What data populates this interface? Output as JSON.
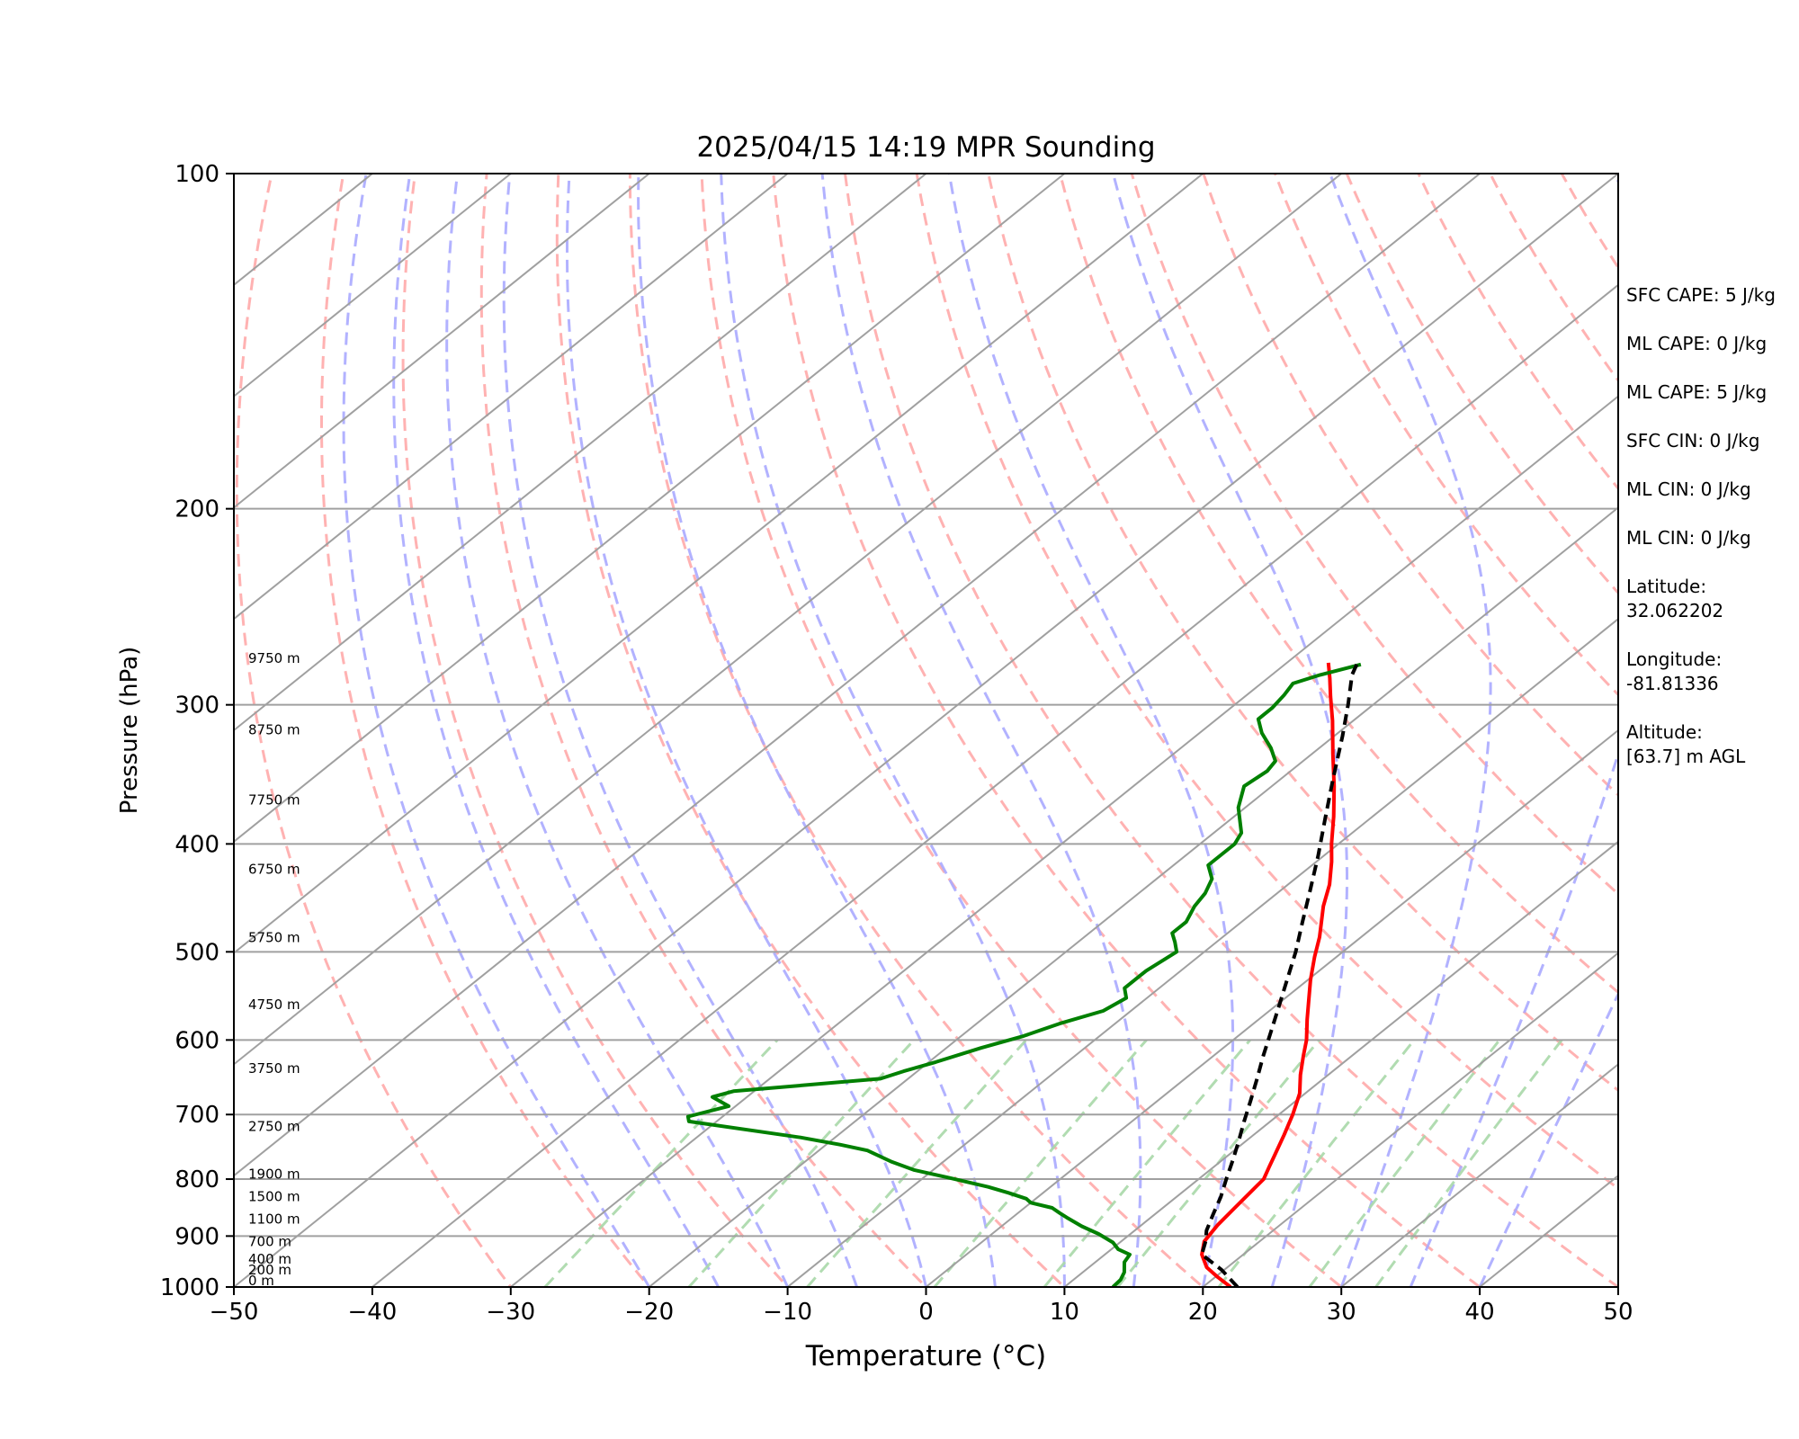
{
  "chart_data": {
    "type": "line",
    "title": "2025/04/15 14:19 MPR Sounding",
    "xlabel": "Temperature (°C)",
    "ylabel": "Pressure (hPa)",
    "xlim": [
      -50,
      50
    ],
    "ylim": [
      1000,
      100
    ],
    "y_scale": "log",
    "x_ticks": [
      "−50",
      "−40",
      "−30",
      "−20",
      "−10",
      "0",
      "10",
      "20",
      "30",
      "40",
      "50"
    ],
    "x_tick_values": [
      -50,
      -40,
      -30,
      -20,
      -10,
      0,
      10,
      20,
      30,
      40,
      50
    ],
    "y_ticks": [
      "1000",
      "900",
      "800",
      "700",
      "600",
      "500",
      "400",
      "300",
      "200",
      "100"
    ],
    "y_tick_values": [
      1000,
      900,
      800,
      700,
      600,
      500,
      400,
      300,
      200,
      100
    ],
    "grid": true,
    "colors": {
      "temperature": "#ff0000",
      "dewpoint": "#008000",
      "parcel": "#000000",
      "isotherms": "#a0a0a0",
      "dry_adiabats": "#ffaaaa",
      "moist_adiabats": "#aaaaff",
      "mixing_ratio": "#a8d8a8"
    },
    "series": [
      {
        "key": "temperature",
        "points": [
          [
            22.0,
            1000
          ],
          [
            20.2,
            980
          ],
          [
            18.5,
            960
          ],
          [
            17.0,
            935
          ],
          [
            16.0,
            910
          ],
          [
            15.5,
            880
          ],
          [
            15.2,
            850
          ],
          [
            14.9,
            820
          ],
          [
            14.7,
            800
          ],
          [
            14.0,
            780
          ],
          [
            13.3,
            760
          ],
          [
            12.2,
            730
          ],
          [
            11.0,
            700
          ],
          [
            9.6,
            670
          ],
          [
            8.0,
            645
          ],
          [
            6.5,
            620
          ],
          [
            5.3,
            600
          ],
          [
            3.5,
            575
          ],
          [
            1.7,
            550
          ],
          [
            0.2,
            530
          ],
          [
            -1.6,
            505
          ],
          [
            -3.0,
            485
          ],
          [
            -5.5,
            455
          ],
          [
            -7.0,
            435
          ],
          [
            -8.9,
            415
          ],
          [
            -10.5,
            400
          ],
          [
            -12.8,
            378
          ],
          [
            -15.5,
            355
          ],
          [
            -18.5,
            332
          ],
          [
            -21.5,
            310
          ],
          [
            -23.8,
            295
          ],
          [
            -25.5,
            284
          ],
          [
            -27.0,
            275
          ]
        ]
      },
      {
        "key": "dewpoint",
        "points": [
          [
            13.5,
            1000
          ],
          [
            13.4,
            985
          ],
          [
            13.0,
            970
          ],
          [
            12.1,
            950
          ],
          [
            11.8,
            935
          ],
          [
            10.5,
            925
          ],
          [
            9.5,
            912
          ],
          [
            7.7,
            896
          ],
          [
            5.8,
            882
          ],
          [
            3.9,
            866
          ],
          [
            3.0,
            858
          ],
          [
            2.0,
            849
          ],
          [
            0.0,
            840
          ],
          [
            -0.7,
            833
          ],
          [
            -2.5,
            823
          ],
          [
            -4.5,
            813
          ],
          [
            -8.1,
            798
          ],
          [
            -11.4,
            785
          ],
          [
            -13.7,
            772
          ],
          [
            -16.5,
            754
          ],
          [
            -19.0,
            745
          ],
          [
            -22.5,
            734
          ],
          [
            -32.0,
            710
          ],
          [
            -32.5,
            703
          ],
          [
            -30.5,
            688
          ],
          [
            -32.5,
            675
          ],
          [
            -31.5,
            667
          ],
          [
            -22.0,
            650
          ],
          [
            -21.0,
            640
          ],
          [
            -19.5,
            628
          ],
          [
            -17.5,
            610
          ],
          [
            -15.5,
            595
          ],
          [
            -14.0,
            580
          ],
          [
            -12.0,
            565
          ],
          [
            -11.5,
            550
          ],
          [
            -12.5,
            539
          ],
          [
            -12.5,
            520
          ],
          [
            -12.0,
            500
          ],
          [
            -13.0,
            490
          ],
          [
            -14.0,
            481
          ],
          [
            -14.0,
            470
          ],
          [
            -14.8,
            455
          ],
          [
            -15.2,
            443
          ],
          [
            -16.0,
            430
          ],
          [
            -17.5,
            418
          ],
          [
            -17.5,
            408
          ],
          [
            -17.5,
            400
          ],
          [
            -18.0,
            391
          ],
          [
            -20.5,
            371
          ],
          [
            -22.0,
            355
          ],
          [
            -21.7,
            344
          ],
          [
            -22.0,
            337
          ],
          [
            -23.5,
            328
          ],
          [
            -25.5,
            318
          ],
          [
            -27.0,
            309
          ],
          [
            -27.0,
            302
          ],
          [
            -27.3,
            294
          ],
          [
            -27.7,
            287
          ],
          [
            -26.5,
            282
          ],
          [
            -24.5,
            276
          ]
        ]
      },
      {
        "key": "parcel",
        "dashed": true,
        "points": [
          [
            22.5,
            1000
          ],
          [
            19.8,
            965
          ],
          [
            17.0,
            935
          ],
          [
            16.1,
            910
          ],
          [
            15.2,
            890
          ],
          [
            14.2,
            860
          ],
          [
            13.2,
            830
          ],
          [
            12.0,
            800
          ],
          [
            10.8,
            770
          ],
          [
            9.5,
            740
          ],
          [
            8.1,
            710
          ],
          [
            6.7,
            680
          ],
          [
            5.2,
            650
          ],
          [
            3.6,
            620
          ],
          [
            2.0,
            590
          ],
          [
            0.3,
            560
          ],
          [
            -1.5,
            530
          ],
          [
            -3.4,
            500
          ],
          [
            -5.6,
            470
          ],
          [
            -7.9,
            440
          ],
          [
            -10.4,
            410
          ],
          [
            -13.2,
            380
          ],
          [
            -16.2,
            350
          ],
          [
            -19.4,
            320
          ],
          [
            -21.8,
            300
          ],
          [
            -24.2,
            282
          ],
          [
            -24.8,
            276
          ]
        ]
      }
    ],
    "height_labels": [
      {
        "text": "0 m",
        "p": 1000
      },
      {
        "text": "200 m",
        "p": 978
      },
      {
        "text": "400 m",
        "p": 956
      },
      {
        "text": "700 m",
        "p": 922
      },
      {
        "text": "1100 m",
        "p": 880
      },
      {
        "text": "1500 m",
        "p": 840
      },
      {
        "text": "1900 m",
        "p": 802
      },
      {
        "text": "2750 m",
        "p": 727
      },
      {
        "text": "3750 m",
        "p": 645
      },
      {
        "text": "4750 m",
        "p": 565
      },
      {
        "text": "5750 m",
        "p": 492
      },
      {
        "text": "6750 m",
        "p": 427
      },
      {
        "text": "7750 m",
        "p": 370
      },
      {
        "text": "8750 m",
        "p": 320
      },
      {
        "text": "9750 m",
        "p": 276
      }
    ]
  },
  "stats": [
    "SFC CAPE: 5 J/kg",
    "ML CAPE: 0 J/kg",
    "ML CAPE: 5 J/kg",
    "SFC CIN: 0 J/kg",
    "ML CIN: 0 J/kg",
    "ML CIN: 0 J/kg",
    "Latitude:\n32.062202",
    "Longitude:\n-81.81336",
    "Altitude:\n[63.7] m AGL"
  ]
}
